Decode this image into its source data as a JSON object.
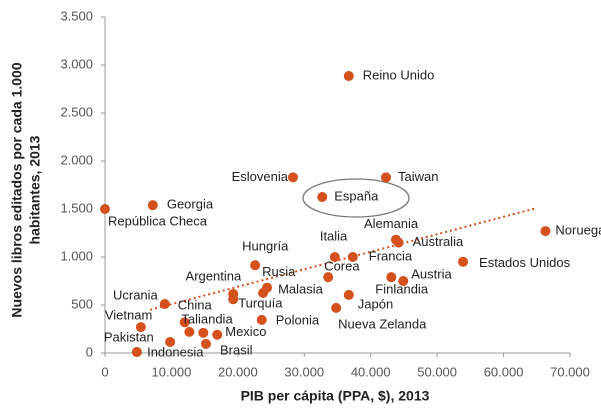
{
  "chart_data": {
    "type": "scatter",
    "x_label": "PIB per cápita (PPA, $), 2013",
    "y_label": [
      "Nuevos libros editados por cada 1.000",
      "habitantes, 2013"
    ],
    "color": "#d4501c",
    "labels": [
      "República Checa",
      "Georgia",
      "Reino Unido",
      "Eslovenia",
      "Taiwan",
      "España",
      "Noruega",
      "Estados Unidos",
      "Alemania",
      "Australia",
      "Italia",
      "Francia",
      "Corea",
      "Hungría",
      "Rusia",
      "Argentina",
      "Turquía",
      "Malasia",
      "Austria",
      "Finlandia",
      "Japón",
      "Nueva Zelanda",
      "Polonia",
      "Ucrania",
      "China",
      "Taliandia",
      "Mexico",
      "Brasil",
      "Indonesia",
      "Pakistan",
      "Vietnam",
      null
    ],
    "x": [
      0,
      7200,
      36700,
      28300,
      42300,
      32700,
      66300,
      53900,
      43800,
      44200,
      34600,
      37300,
      33600,
      22600,
      24400,
      19300,
      19300,
      23800,
      44900,
      43100,
      36700,
      34800,
      23600,
      9000,
      12000,
      12700,
      16900,
      15200,
      9800,
      4800,
      5400,
      14800
    ],
    "values": [
      1500,
      1540,
      2885,
      1830,
      1830,
      1625,
      1270,
      950,
      1180,
      1150,
      1000,
      1000,
      790,
      915,
      680,
      615,
      560,
      625,
      750,
      790,
      605,
      470,
      345,
      510,
      320,
      220,
      190,
      95,
      115,
      10,
      270,
      210
    ],
    "trendline": {
      "x": [
        6800,
        65000
      ],
      "values": [
        450,
        1510
      ]
    },
    "xlim": [
      0,
      70000
    ],
    "xticks": [
      0,
      {
        "value": 10000,
        "label": "10.000"
      },
      {
        "value": 20000,
        "label": "20.000"
      },
      {
        "value": 30000,
        "label": "30.000"
      },
      {
        "value": 40000,
        "label": "40.000"
      },
      {
        "value": 50000,
        "label": "50.000"
      },
      {
        "value": 60000,
        "label": "60.000"
      },
      {
        "value": 70000,
        "label": "70.000"
      }
    ],
    "ylim": [
      0,
      3500
    ],
    "yticks": [
      0,
      500,
      {
        "value": 1000,
        "label": "1.000"
      },
      {
        "value": 1500,
        "label": "1.500"
      },
      {
        "value": 2000,
        "label": "2.000"
      },
      {
        "value": 2500,
        "label": "2.500"
      },
      {
        "value": 3000,
        "label": "3.000"
      },
      {
        "value": 3500,
        "label": "3.500"
      }
    ]
  }
}
